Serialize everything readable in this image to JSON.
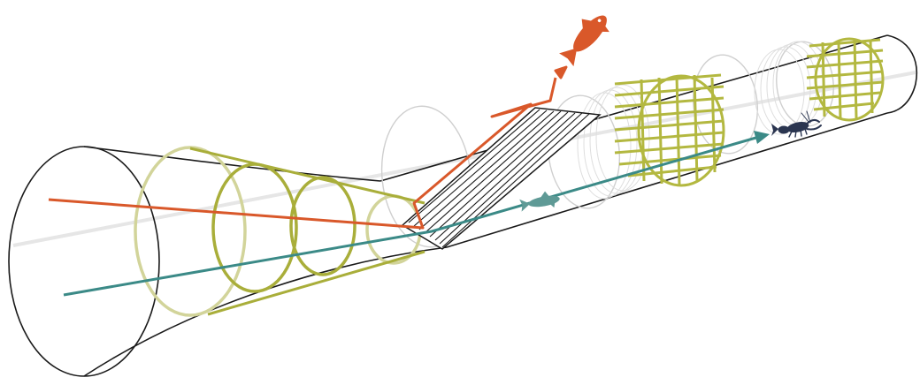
{
  "colors": {
    "outline": "#1a1a1a",
    "axis": "#e6e6e6",
    "funnel": "#a9ae3a",
    "funnel_light": "#d2d49a",
    "orange_path": "#d9582a",
    "teal_path": "#3b8a87",
    "teal_fish": "#5f9a96",
    "grid": "#b3b840",
    "grid_faint": "#d9d9d9",
    "crustacean": "#2a3550"
  },
  "icons": {
    "upper_fish": "fish-icon",
    "lower_fish": "small-fish-icon",
    "crustacean": "shrimp-icon"
  }
}
